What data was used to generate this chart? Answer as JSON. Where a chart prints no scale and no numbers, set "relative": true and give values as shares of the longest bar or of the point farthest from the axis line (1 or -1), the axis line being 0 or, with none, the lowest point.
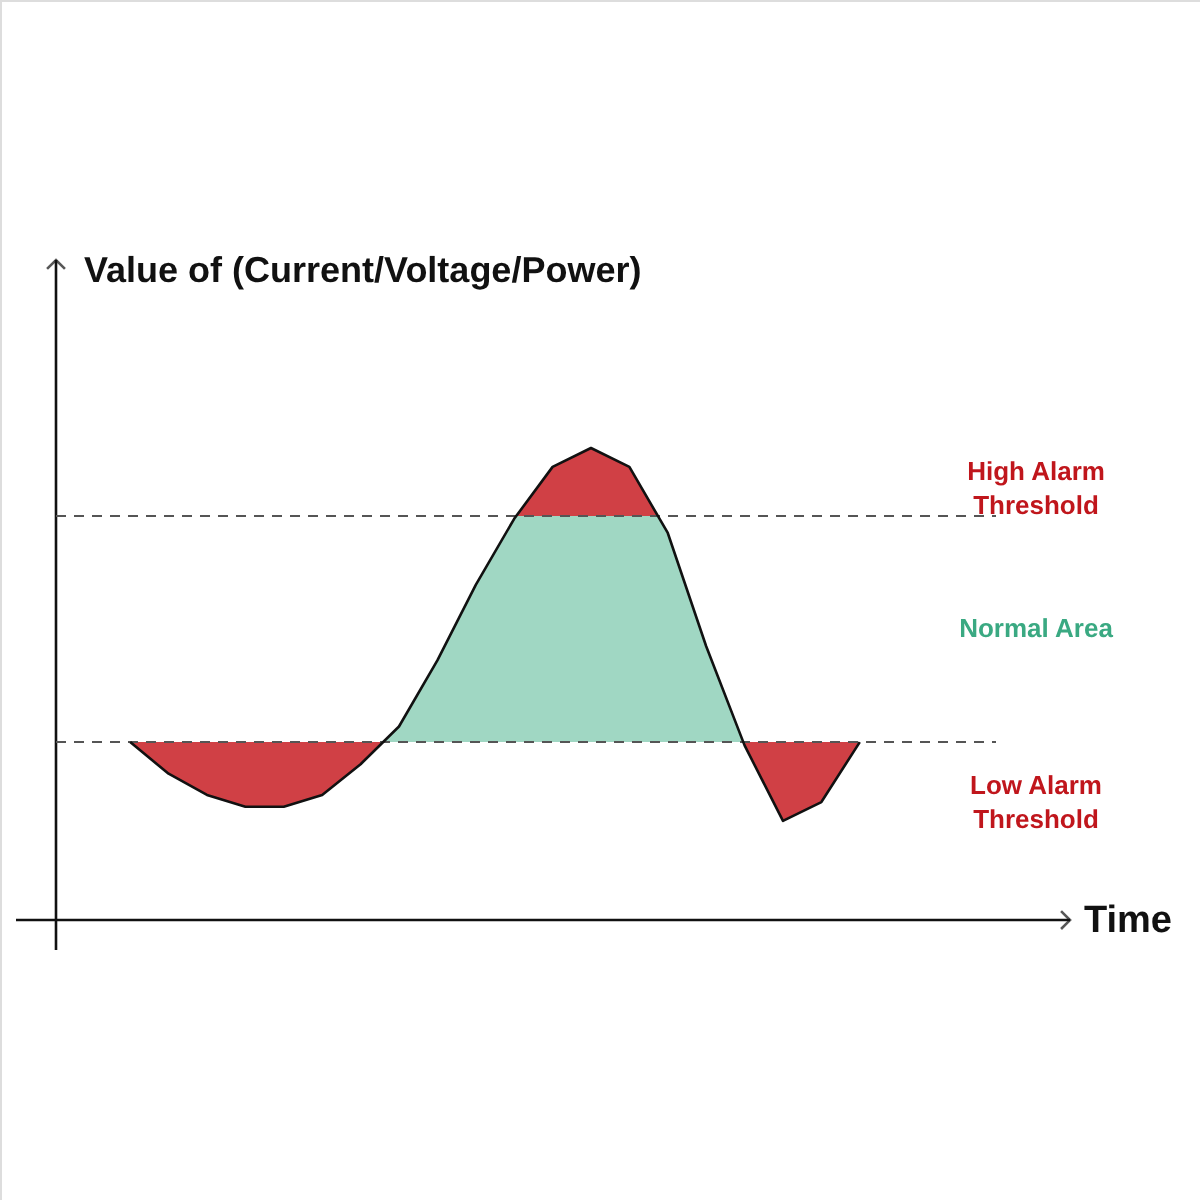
{
  "chart_data": {
    "type": "line",
    "relative": true,
    "ylabel": "Value of (Current/Voltage/Power)",
    "categories": [
      null,
      null,
      null,
      null,
      null,
      null,
      null,
      null,
      null,
      null,
      null,
      null,
      null,
      null,
      null,
      null,
      null,
      null,
      null,
      null
    ],
    "series": [
      {
        "color": "#111111",
        "values": [
          0.377,
          0.31,
          0.265,
          0.24,
          0.24,
          0.265,
          0.33,
          0.41,
          0.55,
          0.71,
          0.85,
          0.96,
          1.0,
          0.96,
          0.82,
          0.58,
          0.37,
          0.21,
          0.25,
          0.377
        ]
      }
    ],
    "ref_lines": [
      {
        "axis": "y",
        "value": 0.856,
        "label": "High Alarm Threshold",
        "color": "#555555",
        "line_style": "dashed"
      },
      {
        "axis": "y",
        "value": 0.377,
        "label": "Low Alarm Threshold",
        "color": "#555555",
        "line_style": "dashed"
      }
    ],
    "annotations": [
      "Normal Area",
      "Time"
    ]
  }
}
